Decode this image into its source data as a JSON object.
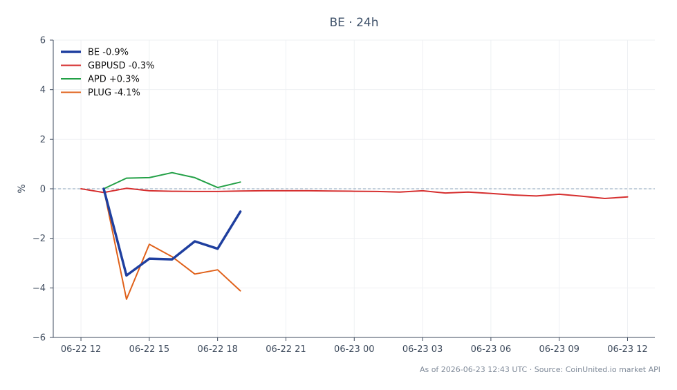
{
  "chart_data": {
    "type": "line",
    "title": "BE · 24h",
    "xlabel": "",
    "ylabel": "%",
    "ylim": [
      -6,
      6
    ],
    "yticks": [
      6,
      4,
      2,
      0,
      -2,
      -4,
      -6
    ],
    "ytick_labels": [
      "6",
      "4",
      "2",
      "0",
      "−2",
      "−4",
      "−6"
    ],
    "xlim": [
      "2026-06-22 10:47",
      "2026-06-23 13:12"
    ],
    "xticks": [
      "06-22 12",
      "06-22 15",
      "06-22 18",
      "06-22 21",
      "06-23 00",
      "06-23 03",
      "06-23 06",
      "06-23 09",
      "06-23 12"
    ],
    "xtick_times": [
      "2026-06-22 12:00",
      "2026-06-22 15:00",
      "2026-06-22 18:00",
      "2026-06-22 21:00",
      "2026-06-23 00:00",
      "2026-06-23 03:00",
      "2026-06-23 06:00",
      "2026-06-23 09:00",
      "2026-06-23 12:00"
    ],
    "grid": true,
    "reference_line": 0,
    "legend_position": "top-left",
    "series": [
      {
        "name": "BE -0.9%",
        "color": "#1f3f9f",
        "width": 3.5,
        "x": [
          "2026-06-22 13:00",
          "2026-06-22 14:00",
          "2026-06-22 15:00",
          "2026-06-22 16:00",
          "2026-06-22 17:00",
          "2026-06-22 18:00",
          "2026-06-22 19:00"
        ],
        "y": [
          0.0,
          -3.5,
          -2.82,
          -2.85,
          -2.12,
          -2.42,
          -0.92
        ]
      },
      {
        "name": "GBPUSD -0.3%",
        "color": "#d62f2f",
        "width": 2,
        "x": [
          "2026-06-22 12:00",
          "2026-06-22 13:00",
          "2026-06-22 14:00",
          "2026-06-22 15:00",
          "2026-06-22 16:00",
          "2026-06-22 17:00",
          "2026-06-22 18:00",
          "2026-06-22 19:00",
          "2026-06-22 20:00",
          "2026-06-22 21:00",
          "2026-06-22 22:00",
          "2026-06-22 23:00",
          "2026-06-23 00:00",
          "2026-06-23 01:00",
          "2026-06-23 02:00",
          "2026-06-23 03:00",
          "2026-06-23 04:00",
          "2026-06-23 05:00",
          "2026-06-23 06:00",
          "2026-06-23 07:00",
          "2026-06-23 08:00",
          "2026-06-23 09:00",
          "2026-06-23 10:00",
          "2026-06-23 11:00",
          "2026-06-23 12:00"
        ],
        "y": [
          0.0,
          -0.15,
          0.02,
          -0.08,
          -0.1,
          -0.11,
          -0.11,
          -0.09,
          -0.08,
          -0.08,
          -0.08,
          -0.09,
          -0.1,
          -0.11,
          -0.13,
          -0.08,
          -0.17,
          -0.13,
          -0.19,
          -0.25,
          -0.29,
          -0.22,
          -0.3,
          -0.39,
          -0.33
        ]
      },
      {
        "name": "APD +0.3%",
        "color": "#22a046",
        "width": 2,
        "x": [
          "2026-06-22 13:00",
          "2026-06-22 14:00",
          "2026-06-22 15:00",
          "2026-06-22 16:00",
          "2026-06-22 17:00",
          "2026-06-22 18:00",
          "2026-06-22 19:00"
        ],
        "y": [
          0.0,
          0.43,
          0.45,
          0.65,
          0.45,
          0.05,
          0.27
        ]
      },
      {
        "name": "PLUG -4.1%",
        "color": "#e0611a",
        "width": 2,
        "x": [
          "2026-06-22 13:00",
          "2026-06-22 14:00",
          "2026-06-22 15:00",
          "2026-06-22 16:00",
          "2026-06-22 17:00",
          "2026-06-22 18:00",
          "2026-06-22 19:00"
        ],
        "y": [
          0.0,
          -4.46,
          -2.24,
          -2.74,
          -3.44,
          -3.27,
          -4.12
        ]
      }
    ]
  },
  "footnote": "As of 2026-06-23 12:43 UTC · Source: CoinUnited.io market API"
}
